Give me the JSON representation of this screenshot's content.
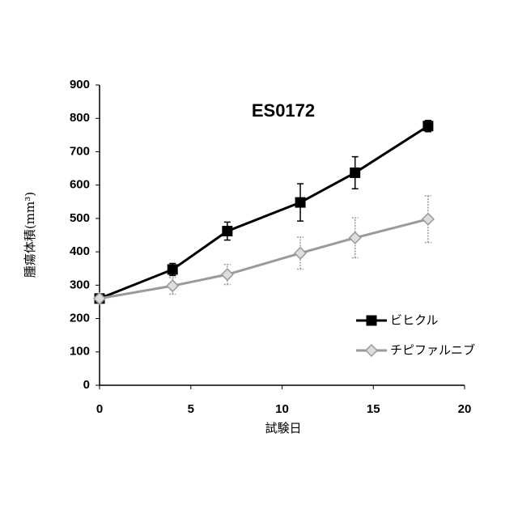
{
  "chart_data": {
    "type": "line",
    "title": "ES0172",
    "x_label": "試験日",
    "y_label": "腫瘍体積(mm³)",
    "x": [
      0,
      4,
      7,
      11,
      14,
      18
    ],
    "series": [
      {
        "name": "ビヒクル",
        "color": "#000000",
        "marker": "square",
        "values": [
          260,
          347,
          462,
          548,
          637,
          777
        ],
        "errors": [
          10,
          18,
          27,
          56,
          48,
          17
        ]
      },
      {
        "name": "チピファルニブ",
        "color": "#9a9a9a",
        "marker": "diamond",
        "values": [
          260,
          298,
          332,
          396,
          442,
          498
        ],
        "errors": [
          10,
          25,
          30,
          48,
          60,
          70
        ]
      }
    ],
    "xlim": [
      0,
      20
    ],
    "xticks": [
      0,
      5,
      10,
      15,
      20
    ],
    "ylim": [
      0,
      900
    ],
    "yticks": [
      0,
      100,
      200,
      300,
      400,
      500,
      600,
      700,
      800,
      900
    ],
    "grid": false
  }
}
